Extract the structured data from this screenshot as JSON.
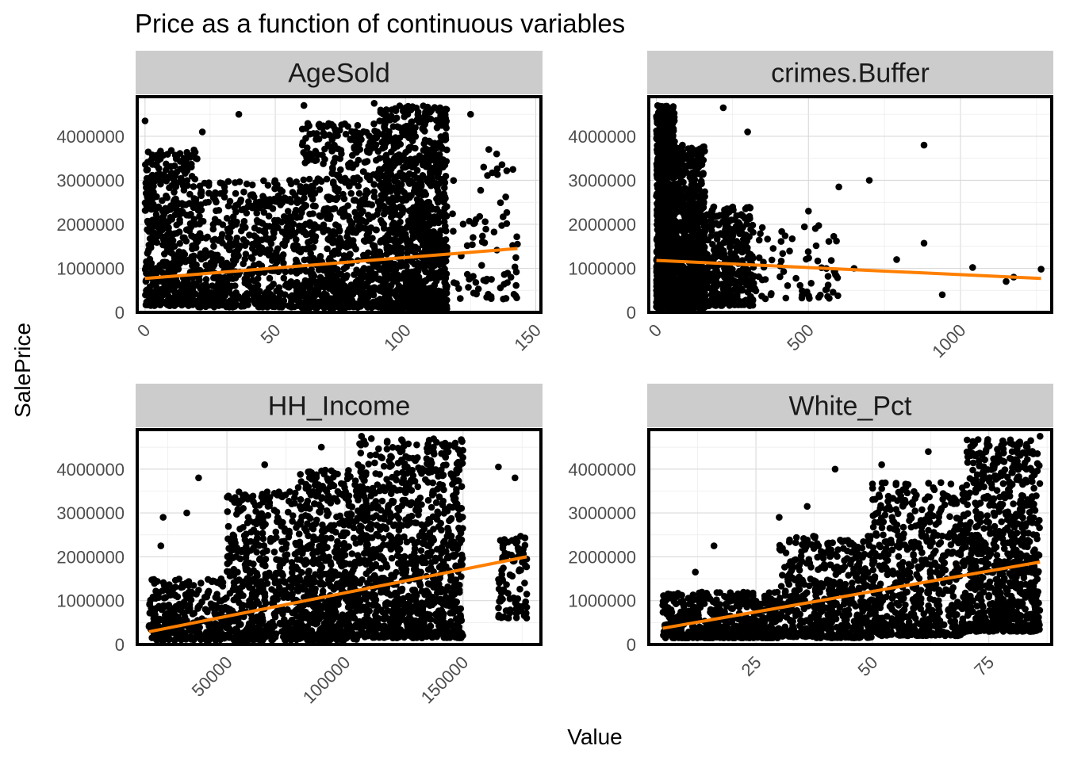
{
  "chart_data": {
    "type": "scatter",
    "title": "Price as a function of continuous variables",
    "xlabel": "Value",
    "ylabel": "SalePrice",
    "point_color": "#000000",
    "fit_line_color": "#FF7F00",
    "strip_color": "#CCCCCC",
    "panel_border_color": "#000000",
    "grid": true,
    "y_ticks": [
      0,
      1000000,
      2000000,
      3000000,
      4000000
    ],
    "y_tick_labels": [
      "0",
      "1000000",
      "2000000",
      "3000000",
      "4000000"
    ],
    "ylim": [
      0,
      4900000
    ],
    "panels": [
      {
        "name": "AgeSold",
        "xlim": [
          -3,
          152
        ],
        "x_ticks": [
          0,
          50,
          100,
          150
        ],
        "x_tick_labels": [
          "0",
          "50",
          "100",
          "150"
        ],
        "fit_line": [
          [
            0,
            770000
          ],
          [
            143,
            1450000
          ]
        ],
        "density": [
          {
            "x": [
              0,
              20
            ],
            "y": [
              150000,
              3700000
            ],
            "n": 500
          },
          {
            "x": [
              20,
              60
            ],
            "y": [
              120000,
              3000000
            ],
            "n": 600
          },
          {
            "x": [
              60,
              90
            ],
            "y": [
              100000,
              4300000
            ],
            "n": 700
          },
          {
            "x": [
              90,
              116
            ],
            "y": [
              80000,
              4700000
            ],
            "n": 1100
          },
          {
            "x": [
              116,
              143
            ],
            "y": [
              300000,
              3500000
            ],
            "n": 70
          }
        ],
        "points": [
          [
            0,
            4350000
          ],
          [
            36,
            4500000
          ],
          [
            22,
            4100000
          ],
          [
            61,
            4700000
          ],
          [
            88,
            4750000
          ],
          [
            100,
            4650000
          ],
          [
            125,
            4500000
          ],
          [
            135,
            3600000
          ],
          [
            143,
            1550000
          ],
          [
            142,
            1030000
          ],
          [
            127,
            680000
          ],
          [
            133,
            750000
          ],
          [
            130,
            3300000
          ],
          [
            132,
            3700000
          ]
        ]
      },
      {
        "name": "crimes.Buffer",
        "xlim": [
          -25,
          1300
        ],
        "x_ticks": [
          0,
          500,
          1000
        ],
        "x_tick_labels": [
          "0",
          "500",
          "1000"
        ],
        "fit_line": [
          [
            0,
            1180000
          ],
          [
            1265,
            770000
          ]
        ],
        "density": [
          {
            "x": [
              0,
              60
            ],
            "y": [
              100000,
              4700000
            ],
            "n": 1100
          },
          {
            "x": [
              60,
              160
            ],
            "y": [
              100000,
              3800000
            ],
            "n": 700
          },
          {
            "x": [
              160,
              320
            ],
            "y": [
              150000,
              2400000
            ],
            "n": 350
          },
          {
            "x": [
              320,
              600
            ],
            "y": [
              300000,
              2000000
            ],
            "n": 70
          }
        ],
        "points": [
          [
            220,
            4650000
          ],
          [
            300,
            4100000
          ],
          [
            880,
            3800000
          ],
          [
            700,
            3000000
          ],
          [
            600,
            2850000
          ],
          [
            500,
            2300000
          ],
          [
            880,
            1570000
          ],
          [
            790,
            1200000
          ],
          [
            940,
            400000
          ],
          [
            1040,
            1020000
          ],
          [
            1150,
            700000
          ],
          [
            1175,
            800000
          ],
          [
            1265,
            980000
          ],
          [
            650,
            1000000
          ]
        ]
      },
      {
        "name": "HH_Income",
        "xlim": [
          12000,
          183000
        ],
        "x_ticks": [
          50000,
          100000,
          150000
        ],
        "x_tick_labels": [
          "50000",
          "100000",
          "150000"
        ],
        "fit_line": [
          [
            17000,
            290000
          ],
          [
            177000,
            2000000
          ]
        ],
        "density": [
          {
            "x": [
              17000,
              50000
            ],
            "y": [
              100000,
              1500000
            ],
            "n": 300
          },
          {
            "x": [
              50000,
              80000
            ],
            "y": [
              100000,
              3500000
            ],
            "n": 500
          },
          {
            "x": [
              80000,
              105000
            ],
            "y": [
              100000,
              4000000
            ],
            "n": 600
          },
          {
            "x": [
              105000,
              150000
            ],
            "y": [
              150000,
              4700000
            ],
            "n": 1000
          },
          {
            "x": [
              165000,
              177000
            ],
            "y": [
              600000,
              2500000
            ],
            "n": 90
          }
        ],
        "points": [
          [
            23000,
            2900000
          ],
          [
            22000,
            2250000
          ],
          [
            33000,
            3000000
          ],
          [
            38000,
            3800000
          ],
          [
            66000,
            4100000
          ],
          [
            90000,
            4500000
          ],
          [
            107000,
            4750000
          ],
          [
            165000,
            4050000
          ],
          [
            172000,
            3800000
          ],
          [
            177000,
            1950000
          ],
          [
            177000,
            1150000
          ],
          [
            177000,
            850000
          ],
          [
            148000,
            250000
          ]
        ]
      },
      {
        "name": "White_Pct",
        "xlim": [
          2,
          88.5
        ],
        "x_ticks": [
          25,
          50,
          75
        ],
        "x_tick_labels": [
          "25",
          "50",
          "75"
        ],
        "fit_line": [
          [
            5,
            370000
          ],
          [
            86,
            1880000
          ]
        ],
        "density": [
          {
            "x": [
              5,
              30
            ],
            "y": [
              150000,
              1200000
            ],
            "n": 500
          },
          {
            "x": [
              30,
              50
            ],
            "y": [
              150000,
              2500000
            ],
            "n": 500
          },
          {
            "x": [
              50,
              70
            ],
            "y": [
              200000,
              3700000
            ],
            "n": 600
          },
          {
            "x": [
              70,
              86
            ],
            "y": [
              300000,
              4700000
            ],
            "n": 800
          }
        ],
        "points": [
          [
            16,
            2250000
          ],
          [
            42,
            4000000
          ],
          [
            30,
            2900000
          ],
          [
            36,
            3150000
          ],
          [
            52,
            4100000
          ],
          [
            62,
            4400000
          ],
          [
            80,
            4400000
          ],
          [
            84,
            4650000
          ],
          [
            86,
            4750000
          ],
          [
            12,
            1650000
          ]
        ]
      }
    ]
  }
}
